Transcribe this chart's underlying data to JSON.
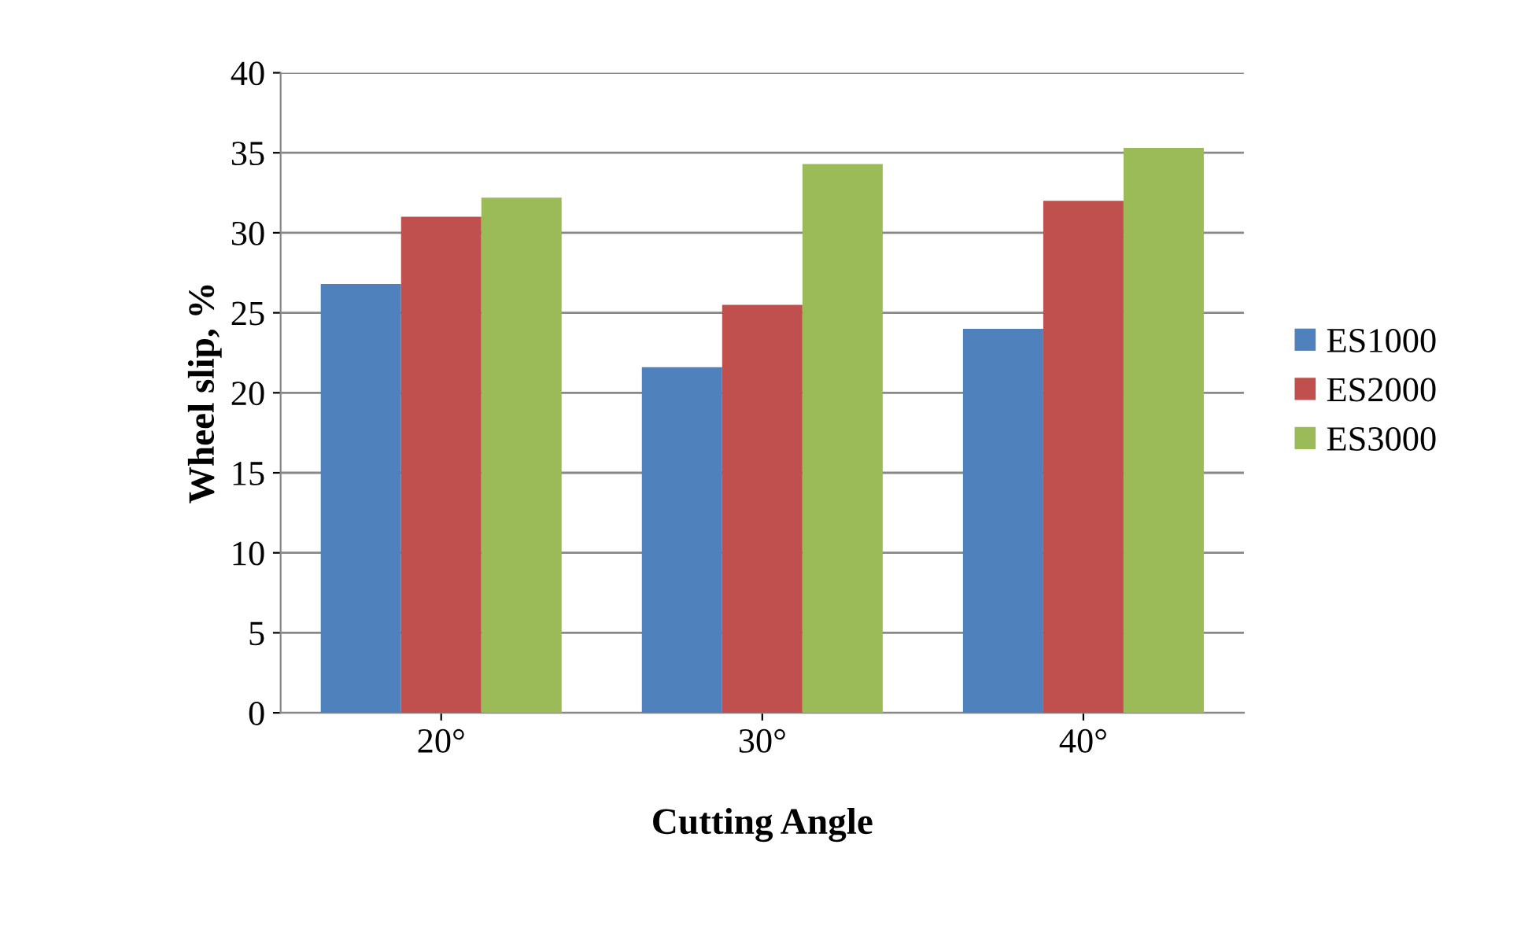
{
  "chart_data": {
    "type": "bar",
    "xlabel": "Cutting Angle",
    "ylabel": "Wheel slip, %",
    "categories": [
      "20°",
      "30°",
      "40°"
    ],
    "series": [
      {
        "name": "ES1000",
        "color": "#4f81bd",
        "values": [
          26.8,
          21.6,
          24.0
        ]
      },
      {
        "name": "ES2000",
        "color": "#c0504d",
        "values": [
          31.0,
          25.5,
          32.0
        ]
      },
      {
        "name": "ES3000",
        "color": "#9bbb59",
        "values": [
          32.2,
          34.3,
          35.3
        ]
      }
    ],
    "ylim": [
      0,
      40
    ],
    "yticks": [
      0,
      5,
      10,
      15,
      20,
      25,
      30,
      35,
      40
    ],
    "grid": "y",
    "legend": "right"
  }
}
